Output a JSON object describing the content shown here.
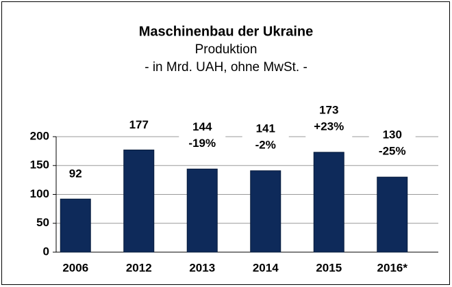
{
  "chart_data": {
    "type": "bar",
    "title": "Maschinenbau der Ukraine",
    "subtitle": "Produktion",
    "subtitle2": "- in Mrd. UAH, ohne MwSt. -",
    "categories": [
      "2006",
      "2012",
      "2013",
      "2014",
      "2015",
      "2016*"
    ],
    "values": [
      92,
      177,
      144,
      141,
      173,
      130
    ],
    "change_labels": [
      null,
      null,
      "-19%",
      "-2%",
      "+23%",
      "-25%"
    ],
    "color": "#0e2a5a",
    "ylim": [
      0,
      200
    ],
    "yticks": [
      0,
      50,
      100,
      150,
      200
    ],
    "grid": true
  }
}
